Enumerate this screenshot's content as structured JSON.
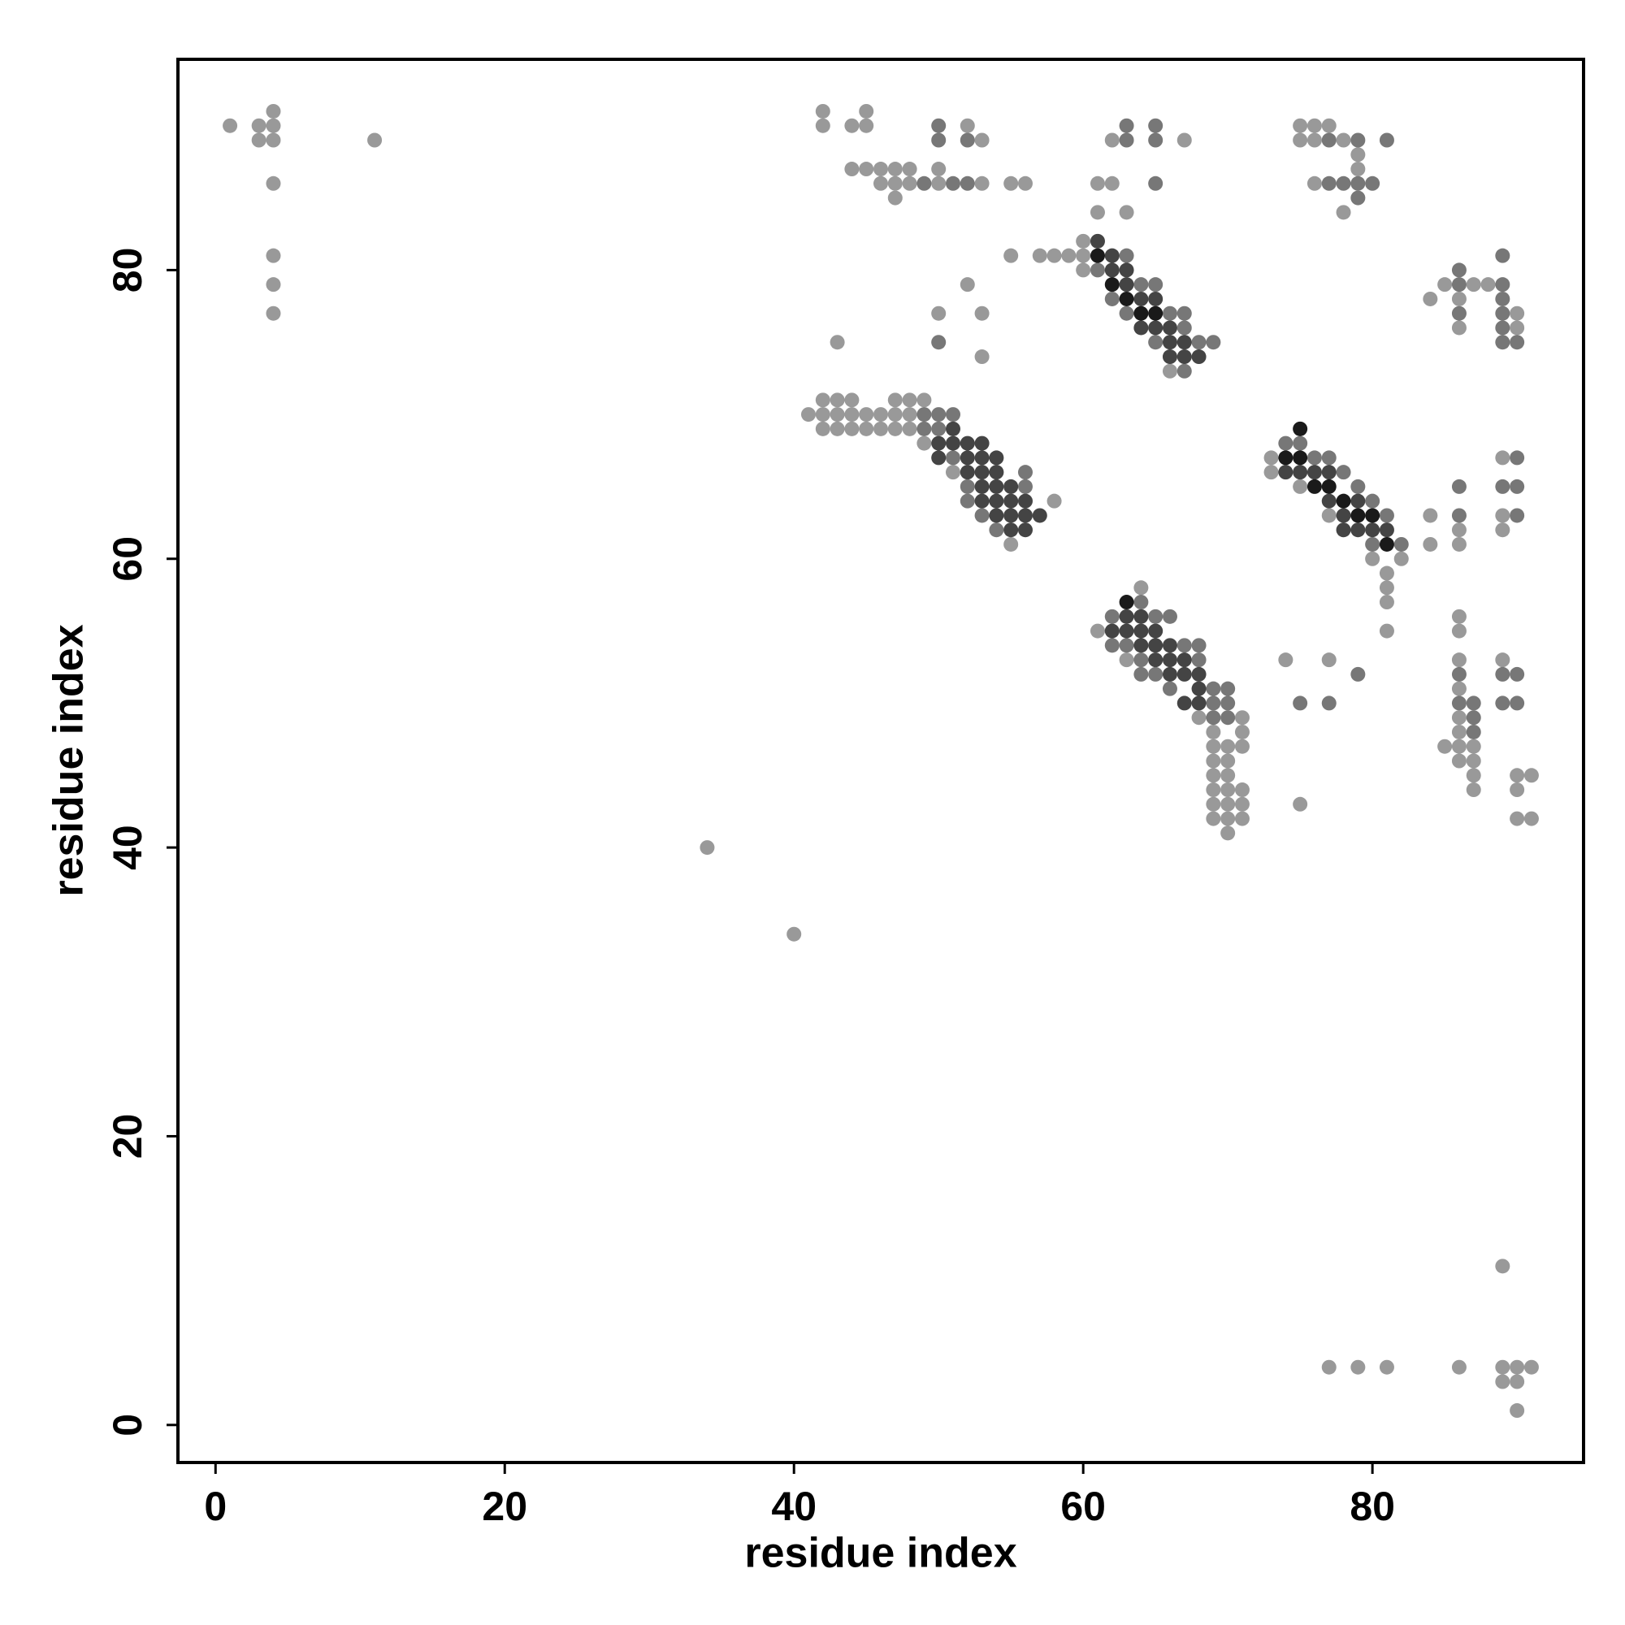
{
  "chart_data": {
    "type": "scatter",
    "x_label": "residue index",
    "y_label": "residue index",
    "xlim": [
      -2.6,
      94.6
    ],
    "ylim": [
      -2.6,
      94.6
    ],
    "xticks": [
      0,
      20,
      40,
      60,
      80
    ],
    "yticks": [
      0,
      20,
      40,
      60,
      80
    ],
    "series": [
      {
        "color": "#999999",
        "x": [
          1,
          3,
          3,
          4,
          4,
          4,
          4,
          4,
          4,
          4,
          11,
          34,
          40,
          42,
          42,
          44,
          45,
          45,
          44,
          45,
          46,
          47,
          48,
          46,
          47,
          48,
          50,
          53,
          47,
          50,
          52,
          53,
          55,
          56,
          55,
          57,
          58,
          59,
          60,
          60,
          60,
          52,
          50,
          53,
          43,
          53,
          61,
          61,
          62,
          62,
          63,
          67,
          75,
          75,
          76,
          76,
          77,
          78,
          76,
          79,
          79,
          78,
          84,
          85,
          86,
          87,
          88,
          86,
          90,
          90,
          42,
          43,
          44,
          47,
          48,
          49,
          41,
          42,
          43,
          44,
          45,
          46,
          47,
          48,
          42,
          43,
          44,
          45,
          46,
          47,
          48,
          49,
          51,
          55,
          58,
          66,
          73,
          73,
          75,
          77,
          82,
          80,
          81,
          81,
          81,
          81,
          84,
          84,
          86,
          86,
          89,
          89,
          89,
          61,
          63,
          64,
          68,
          69,
          69,
          69,
          69,
          69,
          69,
          69,
          70,
          70,
          70,
          70,
          70,
          70,
          70,
          71,
          71,
          71,
          71,
          71,
          71,
          74,
          75,
          77,
          86,
          86,
          86,
          86,
          86,
          86,
          86,
          86,
          85,
          87,
          87,
          87,
          87,
          89,
          90,
          90,
          90,
          91,
          91,
          89,
          77,
          79,
          81,
          86,
          89,
          91,
          89,
          90,
          90,
          90
        ],
        "y": [
          90,
          90,
          89,
          91,
          90,
          89,
          86,
          81,
          79,
          77,
          89,
          40,
          34,
          91,
          90,
          90,
          91,
          90,
          87,
          87,
          87,
          87,
          87,
          86,
          86,
          86,
          86,
          86,
          85,
          87,
          90,
          89,
          86,
          86,
          81,
          81,
          81,
          81,
          82,
          81,
          80,
          79,
          77,
          77,
          75,
          74,
          86,
          84,
          89,
          86,
          84,
          89,
          90,
          89,
          90,
          89,
          90,
          89,
          86,
          87,
          88,
          84,
          78,
          79,
          78,
          79,
          79,
          76,
          77,
          76,
          71,
          71,
          71,
          71,
          71,
          71,
          70,
          70,
          70,
          70,
          70,
          70,
          70,
          70,
          69,
          69,
          69,
          69,
          69,
          69,
          69,
          68,
          66,
          61,
          64,
          73,
          66,
          67,
          65,
          63,
          60,
          60,
          59,
          58,
          57,
          55,
          63,
          61,
          62,
          61,
          67,
          63,
          62,
          55,
          53,
          58,
          49,
          42,
          43,
          44,
          45,
          46,
          47,
          48,
          41,
          42,
          43,
          44,
          45,
          46,
          47,
          42,
          43,
          44,
          47,
          48,
          49,
          53,
          43,
          53,
          56,
          55,
          53,
          51,
          49,
          48,
          47,
          46,
          47,
          44,
          45,
          46,
          47,
          53,
          45,
          44,
          42,
          45,
          42,
          11,
          4,
          4,
          4,
          4,
          4,
          4,
          3,
          3,
          1,
          4
        ]
      },
      {
        "color": "#777777",
        "x": [
          49,
          51,
          52,
          50,
          50,
          52,
          50,
          63,
          63,
          65,
          65,
          65,
          77,
          79,
          81,
          77,
          78,
          79,
          80,
          79,
          86,
          86,
          86,
          89,
          89,
          89,
          89,
          89,
          89,
          90,
          61,
          62,
          63,
          65,
          67,
          68,
          69,
          63,
          64,
          65,
          66,
          67,
          67,
          49,
          49,
          50,
          50,
          51,
          51,
          52,
          52,
          53,
          54,
          56,
          56,
          74,
          75,
          76,
          77,
          78,
          79,
          80,
          81,
          82,
          80,
          86,
          86,
          90,
          89,
          90,
          90,
          86,
          86,
          87,
          87,
          87,
          89,
          90,
          89,
          90,
          75,
          77,
          79,
          62,
          64,
          64,
          65,
          66,
          67,
          68,
          68,
          69,
          70,
          69,
          70,
          69,
          70,
          62,
          63,
          64,
          65,
          66
        ],
        "y": [
          86,
          86,
          86,
          90,
          89,
          89,
          75,
          90,
          89,
          90,
          89,
          86,
          89,
          89,
          89,
          86,
          86,
          86,
          86,
          85,
          80,
          79,
          77,
          81,
          79,
          78,
          77,
          76,
          75,
          75,
          80,
          78,
          77,
          75,
          73,
          75,
          75,
          81,
          79,
          79,
          77,
          77,
          76,
          69,
          70,
          69,
          70,
          67,
          70,
          64,
          65,
          63,
          62,
          65,
          66,
          68,
          68,
          67,
          67,
          66,
          65,
          64,
          63,
          61,
          61,
          65,
          63,
          67,
          65,
          65,
          63,
          52,
          50,
          50,
          48,
          49,
          52,
          52,
          50,
          50,
          50,
          50,
          52,
          56,
          57,
          53,
          56,
          56,
          54,
          54,
          53,
          51,
          51,
          50,
          50,
          49,
          49,
          54,
          54,
          52,
          52,
          51
        ]
      },
      {
        "color": "#444444",
        "x": [
          61,
          62,
          62,
          63,
          63,
          64,
          64,
          65,
          65,
          66,
          66,
          66,
          67,
          67,
          68,
          50,
          50,
          52,
          52,
          52,
          53,
          53,
          53,
          53,
          53,
          54,
          54,
          54,
          54,
          54,
          55,
          55,
          55,
          55,
          56,
          56,
          56,
          57,
          51,
          51,
          76,
          77,
          77,
          78,
          78,
          79,
          79,
          80,
          81,
          74,
          75,
          62,
          63,
          63,
          64,
          64,
          64,
          65,
          65,
          65,
          66,
          66,
          66,
          67,
          67,
          67,
          68,
          68,
          68
        ],
        "y": [
          82,
          80,
          81,
          79,
          80,
          78,
          76,
          76,
          78,
          75,
          74,
          76,
          75,
          74,
          74,
          67,
          68,
          66,
          67,
          68,
          64,
          65,
          66,
          67,
          68,
          63,
          64,
          65,
          66,
          67,
          62,
          63,
          64,
          65,
          62,
          63,
          64,
          63,
          68,
          69,
          66,
          64,
          66,
          62,
          63,
          62,
          64,
          62,
          62,
          66,
          66,
          55,
          55,
          56,
          54,
          55,
          56,
          53,
          54,
          55,
          52,
          53,
          54,
          52,
          53,
          50,
          50,
          51,
          52
        ]
      },
      {
        "color": "#1a1a1a",
        "x": [
          61,
          62,
          63,
          64,
          65,
          74,
          75,
          76,
          77,
          78,
          79,
          80,
          81,
          75,
          63
        ],
        "y": [
          81,
          79,
          78,
          77,
          77,
          67,
          67,
          65,
          65,
          64,
          63,
          63,
          61,
          69,
          57
        ]
      }
    ]
  }
}
